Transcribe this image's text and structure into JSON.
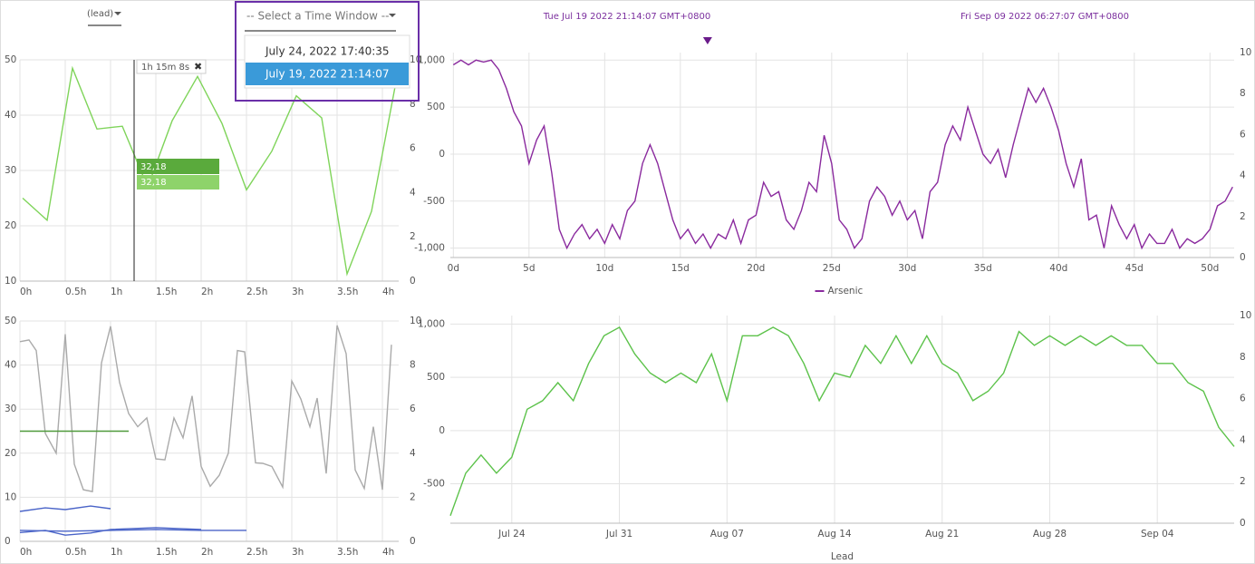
{
  "ui": {
    "lead_dropdown": "(lead)",
    "time_window_placeholder": "-- Select a Time Window --",
    "time_window_options": [
      "July 24, 2022 17:40:35",
      "July 19, 2022 21:14:07"
    ],
    "range_start": "Tue Jul 19 2022 21:14:07 GMT+0800",
    "range_end": "Fri Sep 09 2022 06:27:07 GMT+0800",
    "cursor_tooltip": "1h 15m 8s",
    "cursor_values": [
      "32,18",
      "32,18"
    ]
  },
  "chart_data": [
    {
      "type": "line",
      "xlim": [
        0,
        4.18
      ],
      "ylim": [
        10,
        50
      ],
      "y2lim": [
        0,
        10
      ],
      "grid": true,
      "cursor_x": 1.26,
      "xticks": [
        {
          "value": 0,
          "label": "0h"
        },
        {
          "value": 0.5,
          "label": "0.5h"
        },
        {
          "value": 1,
          "label": "1h"
        },
        {
          "value": 1.5,
          "label": "1.5h"
        },
        {
          "value": 2,
          "label": "2h"
        },
        {
          "value": 2.5,
          "label": "2.5h"
        },
        {
          "value": 3,
          "label": "3h"
        },
        {
          "value": 3.5,
          "label": "3.5h"
        },
        {
          "value": 4,
          "label": "4h"
        }
      ],
      "yticks": [
        10,
        20,
        30,
        40,
        50
      ],
      "y2ticks": [
        0,
        2,
        4,
        6,
        8,
        10
      ],
      "series": [
        {
          "color": "#7fd45a",
          "x": [
            0.03,
            0.3,
            0.58,
            0.85,
            1.13,
            1.41,
            1.68,
            1.96,
            2.23,
            2.5,
            2.78,
            3.05,
            3.33,
            3.61,
            3.88,
            4.15
          ],
          "values": [
            25,
            21,
            48.5,
            37.5,
            38,
            27,
            39,
            47,
            38.5,
            26.5,
            33.5,
            43.5,
            39.5,
            11.3,
            22.6,
            46
          ]
        }
      ]
    },
    {
      "type": "line",
      "xlim": [
        0,
        4.18
      ],
      "ylim": [
        0,
        50
      ],
      "y2lim": [
        0,
        10
      ],
      "grid": true,
      "xticks": [
        {
          "value": 0,
          "label": "0h"
        },
        {
          "value": 0.5,
          "label": "0.5h"
        },
        {
          "value": 1,
          "label": "1h"
        },
        {
          "value": 1.5,
          "label": "1.5h"
        },
        {
          "value": 2,
          "label": "2h"
        },
        {
          "value": 2.5,
          "label": "2.5h"
        },
        {
          "value": 3,
          "label": "3h"
        },
        {
          "value": 3.5,
          "label": "3.5h"
        },
        {
          "value": 4,
          "label": "4h"
        }
      ],
      "yticks": [
        0,
        10,
        20,
        30,
        40,
        50
      ],
      "y2ticks": [
        0,
        2,
        4,
        6,
        8,
        10
      ],
      "series": [
        {
          "color": "#aaaaaa",
          "x": [
            0,
            0.1,
            0.18,
            0.28,
            0.4,
            0.5,
            0.6,
            0.7,
            0.8,
            0.9,
            1,
            1.1,
            1.2,
            1.3,
            1.4,
            1.5,
            1.6,
            1.7,
            1.8,
            1.9,
            2,
            2.1,
            2.2,
            2.3,
            2.4,
            2.48,
            2.6,
            2.68,
            2.78,
            2.9,
            3,
            3.1,
            3.2,
            3.28,
            3.38,
            3.5,
            3.6,
            3.7,
            3.8,
            3.9,
            4,
            4.1
          ],
          "values": [
            45.3,
            45.7,
            43.3,
            24.5,
            20,
            47,
            17.5,
            11.7,
            11.3,
            40.5,
            48.8,
            36,
            29,
            26,
            28,
            18.7,
            18.5,
            28,
            23.5,
            33,
            17,
            12.5,
            15,
            20,
            43.3,
            43,
            17.8,
            17.7,
            17,
            12.3,
            36.4,
            32.3,
            26,
            32.5,
            15.4,
            49,
            42.6,
            16.2,
            12,
            26,
            11.7,
            44.6
          ]
        },
        {
          "color": "#4f9a3a",
          "x": [
            0,
            1.2
          ],
          "values": [
            25,
            25
          ]
        },
        {
          "color": "#4a64c8",
          "x": [
            0,
            0.28,
            0.5,
            0.78,
            1
          ],
          "values": [
            6.8,
            7.6,
            7.2,
            8,
            7.4
          ]
        },
        {
          "color": "#4a64c8",
          "x": [
            0,
            0.28,
            0.5,
            0.78,
            1,
            1.5,
            2
          ],
          "values": [
            2,
            2.5,
            1.4,
            1.9,
            2.7,
            3.1,
            2.7
          ]
        },
        {
          "color": "#4a64c8",
          "x": [
            0,
            0.5,
            1,
            1.5,
            2,
            2.5
          ],
          "values": [
            2.5,
            2.3,
            2.5,
            2.7,
            2.5,
            2.5
          ]
        }
      ]
    },
    {
      "type": "line",
      "xlim": [
        -0.2,
        51.6
      ],
      "ylim": [
        -1100,
        1080
      ],
      "y2lim": [
        0,
        10
      ],
      "grid": true,
      "legend": "bottom",
      "marker_x": 16.8,
      "xticks": [
        {
          "value": 0,
          "label": "0d"
        },
        {
          "value": 5,
          "label": "5d"
        },
        {
          "value": 10,
          "label": "10d"
        },
        {
          "value": 15,
          "label": "15d"
        },
        {
          "value": 20,
          "label": "20d"
        },
        {
          "value": 25,
          "label": "25d"
        },
        {
          "value": 30,
          "label": "30d"
        },
        {
          "value": 35,
          "label": "35d"
        },
        {
          "value": 40,
          "label": "40d"
        },
        {
          "value": 45,
          "label": "45d"
        },
        {
          "value": 50,
          "label": "50d"
        }
      ],
      "yticks": [
        {
          "value": -1000,
          "label": "-1,000"
        },
        -500,
        0,
        500,
        {
          "value": 1000,
          "label": "1,000"
        }
      ],
      "y2ticks": [
        0,
        2,
        4,
        6,
        8,
        10
      ],
      "x": [
        0,
        0.5,
        1,
        1.5,
        2,
        2.5,
        3,
        3.5,
        4,
        4.5,
        5,
        5.5,
        6,
        6.5,
        7,
        7.5,
        8,
        8.5,
        9,
        9.5,
        10,
        10.5,
        11,
        11.5,
        12,
        12.5,
        13,
        13.5,
        14,
        14.5,
        15,
        15.5,
        16,
        16.5,
        17,
        17.5,
        18,
        18.5,
        19,
        19.5,
        20,
        20.5,
        21,
        21.5,
        22,
        22.5,
        23,
        23.5,
        24,
        24.5,
        25,
        25.5,
        26,
        26.5,
        27,
        27.5,
        28,
        28.5,
        29,
        29.5,
        30,
        30.5,
        31,
        31.5,
        32,
        32.5,
        33,
        33.5,
        34,
        34.5,
        35,
        35.5,
        36,
        36.5,
        37,
        37.5,
        38,
        38.5,
        39,
        39.5,
        40,
        40.5,
        41,
        41.5,
        42,
        42.5,
        43,
        43.5,
        44,
        44.5,
        45,
        45.5,
        46,
        46.5,
        47,
        47.5,
        48,
        48.5,
        49,
        49.5,
        50,
        50.5,
        51,
        51.5
      ],
      "series": [
        {
          "name": "Arsenic",
          "color": "#8a2a9e",
          "values": [
            950,
            1000,
            950,
            1000,
            980,
            1000,
            900,
            700,
            450,
            300,
            -100,
            150,
            300,
            -200,
            -800,
            -1000,
            -850,
            -750,
            -900,
            -800,
            -950,
            -750,
            -900,
            -600,
            -500,
            -100,
            100,
            -100,
            -400,
            -700,
            -900,
            -800,
            -950,
            -850,
            -1000,
            -850,
            -900,
            -700,
            -950,
            -700,
            -650,
            -300,
            -450,
            -400,
            -700,
            -800,
            -600,
            -300,
            -400,
            200,
            -100,
            -700,
            -800,
            -1000,
            -900,
            -500,
            -350,
            -450,
            -650,
            -500,
            -700,
            -600,
            -900,
            -400,
            -300,
            100,
            300,
            150,
            500,
            250,
            0,
            -100,
            50,
            -250,
            100,
            400,
            700,
            550,
            700,
            500,
            250,
            -100,
            -350,
            -50,
            -700,
            -650,
            -1000,
            -550,
            -750,
            -900,
            -750,
            -1000,
            -850,
            -950,
            -950,
            -800,
            -1000,
            -900,
            -950,
            -900,
            -800,
            -550,
            -500,
            -350
          ]
        }
      ]
    },
    {
      "type": "line",
      "x_label": "Lead",
      "xlim": [
        "Jul 20",
        "Sep 09"
      ],
      "ylim": [
        -870,
        1080
      ],
      "y2lim": [
        0,
        10
      ],
      "grid": true,
      "xticks": [
        "Jul 24",
        "Jul 31",
        "Aug 07",
        "Aug 14",
        "Aug 21",
        "Aug 28",
        "Sep 04"
      ],
      "yticks": [
        -500,
        0,
        500,
        {
          "value": 1000,
          "label": "1,000"
        }
      ],
      "y2ticks": [
        0,
        2,
        4,
        6,
        8,
        10
      ],
      "x": [
        "Jul 20",
        "Jul 21",
        "Jul 22",
        "Jul 23",
        "Jul 24",
        "Jul 25",
        "Jul 26",
        "Jul 27",
        "Jul 28",
        "Jul 29",
        "Jul 30",
        "Jul 31",
        "Aug 01",
        "Aug 02",
        "Aug 03",
        "Aug 04",
        "Aug 05",
        "Aug 06",
        "Aug 07",
        "Aug 08",
        "Aug 09",
        "Aug 10",
        "Aug 11",
        "Aug 12",
        "Aug 13",
        "Aug 14",
        "Aug 15",
        "Aug 16",
        "Aug 17",
        "Aug 18",
        "Aug 19",
        "Aug 20",
        "Aug 21",
        "Aug 22",
        "Aug 23",
        "Aug 24",
        "Aug 25",
        "Aug 26",
        "Aug 27",
        "Aug 28",
        "Aug 29",
        "Aug 30",
        "Aug 31",
        "Sep 01",
        "Sep 02",
        "Sep 03",
        "Sep 04",
        "Sep 05",
        "Sep 06",
        "Sep 07",
        "Sep 08",
        "Sep 09"
      ],
      "series": [
        {
          "color": "#5cc24a",
          "values": [
            -800,
            -400,
            -230,
            -400,
            -250,
            200,
            280,
            450,
            280,
            630,
            890,
            970,
            720,
            540,
            450,
            540,
            450,
            720,
            280,
            890,
            890,
            970,
            890,
            630,
            280,
            540,
            500,
            800,
            630,
            890,
            630,
            890,
            630,
            540,
            280,
            370,
            540,
            930,
            800,
            890,
            800,
            890,
            800,
            890,
            800,
            800,
            630,
            630,
            450,
            370,
            30,
            -150
          ]
        }
      ]
    }
  ]
}
